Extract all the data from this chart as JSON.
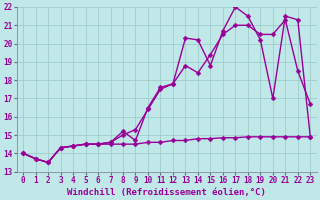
{
  "xlabel": "Windchill (Refroidissement éolien,°C)",
  "bg_color": "#c0e8e8",
  "grid_color": "#a0cccc",
  "line_color": "#990099",
  "xlim": [
    -0.5,
    23.5
  ],
  "ylim": [
    13,
    22
  ],
  "yticks": [
    13,
    14,
    15,
    16,
    17,
    18,
    19,
    20,
    21,
    22
  ],
  "xticks": [
    0,
    1,
    2,
    3,
    4,
    5,
    6,
    7,
    8,
    9,
    10,
    11,
    12,
    13,
    14,
    15,
    16,
    17,
    18,
    19,
    20,
    21,
    22,
    23
  ],
  "line1_x": [
    0,
    1,
    2,
    3,
    4,
    5,
    6,
    7,
    8,
    9,
    10,
    11,
    12,
    13,
    14,
    15,
    16,
    17,
    18,
    19,
    20,
    21,
    22,
    23
  ],
  "line1_y": [
    14.0,
    13.7,
    13.5,
    14.3,
    14.4,
    14.5,
    14.5,
    14.5,
    14.5,
    14.5,
    14.6,
    14.6,
    14.7,
    14.7,
    14.8,
    14.8,
    14.85,
    14.85,
    14.9,
    14.9,
    14.9,
    14.9,
    14.9,
    14.9
  ],
  "line2_x": [
    0,
    1,
    2,
    3,
    4,
    5,
    6,
    7,
    8,
    9,
    10,
    11,
    12,
    13,
    14,
    15,
    16,
    17,
    18,
    19,
    20,
    21,
    22,
    23
  ],
  "line2_y": [
    14.0,
    13.7,
    13.5,
    14.3,
    14.4,
    14.5,
    14.5,
    14.6,
    15.0,
    15.3,
    16.4,
    17.5,
    17.8,
    18.8,
    18.4,
    19.4,
    20.5,
    21.0,
    21.0,
    20.5,
    20.5,
    21.3,
    18.5,
    16.7
  ],
  "line3_x": [
    0,
    1,
    2,
    3,
    4,
    5,
    6,
    7,
    8,
    9,
    10,
    11,
    12,
    13,
    14,
    15,
    16,
    17,
    18,
    19,
    20,
    21,
    22,
    23
  ],
  "line3_y": [
    14.0,
    13.7,
    13.5,
    14.3,
    14.4,
    14.5,
    14.5,
    14.6,
    15.2,
    14.7,
    16.5,
    17.6,
    17.8,
    20.3,
    20.2,
    18.8,
    20.7,
    22.0,
    21.5,
    20.2,
    17.0,
    21.5,
    21.3,
    14.9
  ],
  "marker": "D",
  "markersize": 2.5,
  "linewidth": 1.0,
  "tick_fontsize": 5.5,
  "label_fontsize": 6.5
}
